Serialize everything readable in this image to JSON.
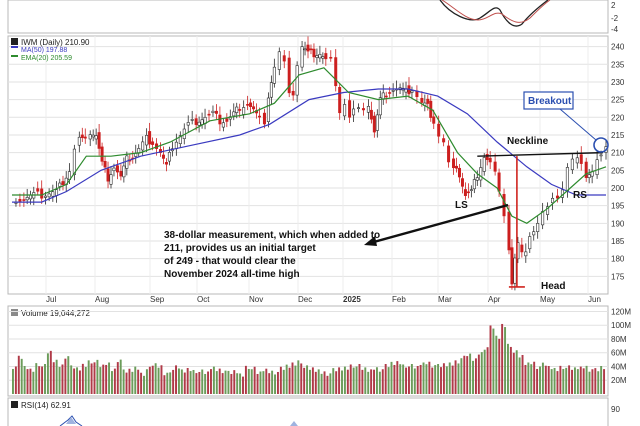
{
  "chart_data": {
    "type": "candlestick",
    "price_panel": {
      "legend": [
        {
          "label": "IWM (Daily) 210.90",
          "color": "#222222"
        },
        {
          "label": "MA(50) 197.88",
          "color": "#3a3ac0"
        },
        {
          "label": "EMA(20) 205.59",
          "color": "#2e8b2e"
        }
      ],
      "y_ticks": [
        "240",
        "235",
        "230",
        "225",
        "220",
        "215",
        "210",
        "205",
        "200",
        "195",
        "190",
        "185",
        "180",
        "175"
      ],
      "ylim": [
        170,
        243
      ],
      "x_ticks": [
        "Jul",
        "Aug",
        "Sep",
        "Oct",
        "Nov",
        "Dec",
        "2025",
        "Feb",
        "Mar",
        "Apr",
        "May",
        "Jun"
      ],
      "close_path": [
        [
          0,
          197
        ],
        [
          12,
          197
        ],
        [
          22,
          198
        ],
        [
          30,
          198
        ],
        [
          45,
          199
        ],
        [
          58,
          205
        ],
        [
          63,
          211
        ],
        [
          68,
          214
        ],
        [
          74,
          213
        ],
        [
          79,
          216
        ],
        [
          85,
          215
        ],
        [
          91,
          207
        ],
        [
          97,
          203
        ],
        [
          103,
          206
        ],
        [
          110,
          203
        ],
        [
          116,
          208
        ],
        [
          122,
          209
        ],
        [
          128,
          211
        ],
        [
          136,
          214
        ],
        [
          142,
          213
        ],
        [
          150,
          210
        ],
        [
          156,
          206
        ],
        [
          162,
          212
        ],
        [
          170,
          215
        ],
        [
          178,
          218
        ],
        [
          186,
          219
        ],
        [
          195,
          220
        ],
        [
          203,
          221
        ],
        [
          210,
          219
        ],
        [
          217,
          219
        ],
        [
          224,
          221
        ],
        [
          230,
          223
        ],
        [
          238,
          224
        ],
        [
          244,
          222
        ],
        [
          250,
          219
        ],
        [
          255,
          219
        ],
        [
          259,
          226
        ],
        [
          265,
          234
        ],
        [
          270,
          238
        ],
        [
          275,
          235
        ],
        [
          280,
          228
        ],
        [
          284,
          227
        ],
        [
          288,
          235
        ],
        [
          293,
          240
        ],
        [
          299,
          238
        ],
        [
          305,
          238
        ],
        [
          311,
          238
        ],
        [
          317,
          236
        ],
        [
          322,
          236
        ],
        [
          327,
          230
        ],
        [
          331,
          222
        ],
        [
          336,
          224
        ],
        [
          341,
          220
        ],
        [
          345,
          222
        ],
        [
          350,
          222
        ],
        [
          355,
          221
        ],
        [
          360,
          224
        ],
        [
          366,
          216
        ],
        [
          372,
          225
        ],
        [
          378,
          227
        ],
        [
          385,
          228
        ],
        [
          392,
          228
        ],
        [
          398,
          227
        ],
        [
          404,
          228
        ],
        [
          409,
          226
        ],
        [
          414,
          224
        ],
        [
          420,
          223
        ],
        [
          426,
          219
        ],
        [
          431,
          215
        ],
        [
          436,
          213
        ],
        [
          441,
          207
        ],
        [
          446,
          205
        ],
        [
          452,
          204
        ],
        [
          458,
          198
        ],
        [
          464,
          199
        ],
        [
          470,
          204
        ],
        [
          477,
          209
        ],
        [
          483,
          207
        ],
        [
          488,
          204
        ],
        [
          492,
          198
        ],
        [
          497,
          193
        ],
        [
          502,
          183
        ],
        [
          505,
          173
        ],
        [
          508,
          180
        ],
        [
          511,
          184
        ],
        [
          515,
          181
        ],
        [
          519,
          183
        ],
        [
          523,
          187
        ],
        [
          527,
          188
        ],
        [
          531,
          190
        ],
        [
          536,
          193
        ],
        [
          541,
          194
        ],
        [
          546,
          196
        ],
        [
          551,
          198
        ],
        [
          556,
          200
        ],
        [
          561,
          206
        ],
        [
          566,
          208
        ],
        [
          571,
          208
        ],
        [
          575,
          206
        ],
        [
          580,
          204
        ],
        [
          586,
          205
        ],
        [
          591,
          208
        ],
        [
          595,
          209
        ],
        [
          600,
          211
        ]
      ],
      "ma50": {
        "name": "MA(50)",
        "points": [
          [
            0,
            196
          ],
          [
            30,
            196
          ],
          [
            55,
            199
          ],
          [
            90,
            205
          ],
          [
            130,
            209
          ],
          [
            180,
            212
          ],
          [
            230,
            215
          ],
          [
            260,
            218
          ],
          [
            300,
            225
          ],
          [
            335,
            227
          ],
          [
            370,
            228
          ],
          [
            400,
            228
          ],
          [
            430,
            226
          ],
          [
            460,
            221
          ],
          [
            490,
            213
          ],
          [
            520,
            206
          ],
          [
            545,
            201
          ],
          [
            570,
            198
          ],
          [
            600,
            198
          ]
        ]
      },
      "ema20": {
        "name": "EMA(20)",
        "points": [
          [
            0,
            198
          ],
          [
            30,
            198
          ],
          [
            55,
            201
          ],
          [
            75,
            209
          ],
          [
            100,
            209
          ],
          [
            130,
            210
          ],
          [
            160,
            213
          ],
          [
            200,
            219
          ],
          [
            240,
            221
          ],
          [
            265,
            224
          ],
          [
            290,
            232
          ],
          [
            315,
            234
          ],
          [
            340,
            227
          ],
          [
            370,
            225
          ],
          [
            400,
            226
          ],
          [
            425,
            222
          ],
          [
            450,
            210
          ],
          [
            470,
            204
          ],
          [
            490,
            200
          ],
          [
            505,
            192
          ],
          [
            520,
            190
          ],
          [
            540,
            194
          ],
          [
            560,
            199
          ],
          [
            580,
            204
          ],
          [
            600,
            206
          ]
        ]
      },
      "volume_bars": [
        [
          "up",
          40
        ],
        [
          "dn",
          52
        ],
        [
          "up",
          38
        ],
        [
          "dn",
          35
        ],
        [
          "up",
          44
        ],
        [
          "dn",
          40
        ],
        [
          "up",
          60
        ],
        [
          "dn",
          48
        ],
        [
          "up",
          42
        ],
        [
          "dn",
          55
        ],
        [
          "up",
          38
        ],
        [
          "up",
          36
        ],
        [
          "dn",
          42
        ],
        [
          "up",
          48
        ],
        [
          "dn",
          46
        ],
        [
          "up",
          40
        ],
        [
          "dn",
          44
        ],
        [
          "up",
          36
        ],
        [
          "dn",
          50
        ],
        [
          "up",
          32
        ],
        [
          "dn",
          34
        ],
        [
          "up",
          38
        ],
        [
          "dn",
          30
        ],
        [
          "up",
          36
        ],
        [
          "dn",
          42
        ],
        [
          "up",
          40
        ],
        [
          "dn",
          30
        ],
        [
          "up",
          35
        ],
        [
          "dn",
          38
        ],
        [
          "up",
          33
        ],
        [
          "dn",
          36
        ],
        [
          "up",
          34
        ],
        [
          "dn",
          32
        ],
        [
          "up",
          30
        ],
        [
          "dn",
          38
        ],
        [
          "up",
          36
        ],
        [
          "dn",
          34
        ],
        [
          "up",
          30
        ],
        [
          "dn",
          32
        ],
        [
          "up",
          28
        ],
        [
          "dn",
          40
        ],
        [
          "up",
          36
        ],
        [
          "dn",
          30
        ],
        [
          "up",
          35
        ],
        [
          "dn",
          33
        ],
        [
          "up",
          32
        ],
        [
          "dn",
          36
        ],
        [
          "up",
          40
        ],
        [
          "dn",
          44
        ],
        [
          "up",
          48
        ],
        [
          "dn",
          38
        ],
        [
          "up",
          36
        ],
        [
          "dn",
          34
        ],
        [
          "up",
          32
        ],
        [
          "dn",
          30
        ],
        [
          "up",
          34
        ],
        [
          "dn",
          36
        ],
        [
          "up",
          38
        ],
        [
          "dn",
          42
        ],
        [
          "up",
          40
        ],
        [
          "dn",
          36
        ],
        [
          "up",
          34
        ],
        [
          "dn",
          38
        ],
        [
          "up",
          36
        ],
        [
          "dn",
          40
        ],
        [
          "up",
          44
        ],
        [
          "dn",
          46
        ],
        [
          "up",
          42
        ],
        [
          "dn",
          40
        ],
        [
          "up",
          38
        ],
        [
          "dn",
          44
        ],
        [
          "up",
          46
        ],
        [
          "dn",
          42
        ],
        [
          "up",
          40
        ],
        [
          "dn",
          42
        ],
        [
          "up",
          44
        ],
        [
          "dn",
          48
        ],
        [
          "up",
          52
        ],
        [
          "dn",
          56
        ],
        [
          "up",
          50
        ],
        [
          "dn",
          60
        ],
        [
          "up",
          68
        ],
        [
          "dn",
          96
        ],
        [
          "up",
          82
        ],
        [
          "dn",
          100
        ],
        [
          "up",
          72
        ],
        [
          "dn",
          60
        ],
        [
          "up",
          54
        ],
        [
          "dn",
          44
        ],
        [
          "up",
          46
        ],
        [
          "dn",
          40
        ],
        [
          "up",
          42
        ],
        [
          "dn",
          38
        ],
        [
          "up",
          36
        ],
        [
          "dn",
          40
        ],
        [
          "up",
          38
        ],
        [
          "dn",
          36
        ],
        [
          "up",
          38
        ],
        [
          "dn",
          40
        ],
        [
          "up",
          36
        ],
        [
          "dn",
          34
        ],
        [
          "up",
          38
        ]
      ],
      "annotations": [
        {
          "text": "Breakout"
        },
        {
          "text": "Neckline"
        },
        {
          "text": "LS"
        },
        {
          "text": "RS"
        },
        {
          "text": "Head"
        },
        {
          "text": "38-dollar measurement, which when added to 211, provides us an initial target of 249 - that would clear the November 2024 all-time high"
        }
      ],
      "neckline": [
        [
          470,
          209
        ],
        [
          597,
          210
        ]
      ],
      "measure": {
        "x": 510,
        "top": 209,
        "bottom": 172
      }
    },
    "volume_panel": {
      "title": "Volume 19,044,272",
      "y_ticks": [
        "120M",
        "100M",
        "80M",
        "60M",
        "40M",
        "20M"
      ],
      "ylim": [
        0,
        125
      ]
    },
    "rsi_panel": {
      "title": "RSI(14) 62.91",
      "y_ticks": [
        "90"
      ]
    },
    "macd_panel": {
      "y_ticks": [
        "2",
        "-2",
        "-4"
      ]
    }
  }
}
